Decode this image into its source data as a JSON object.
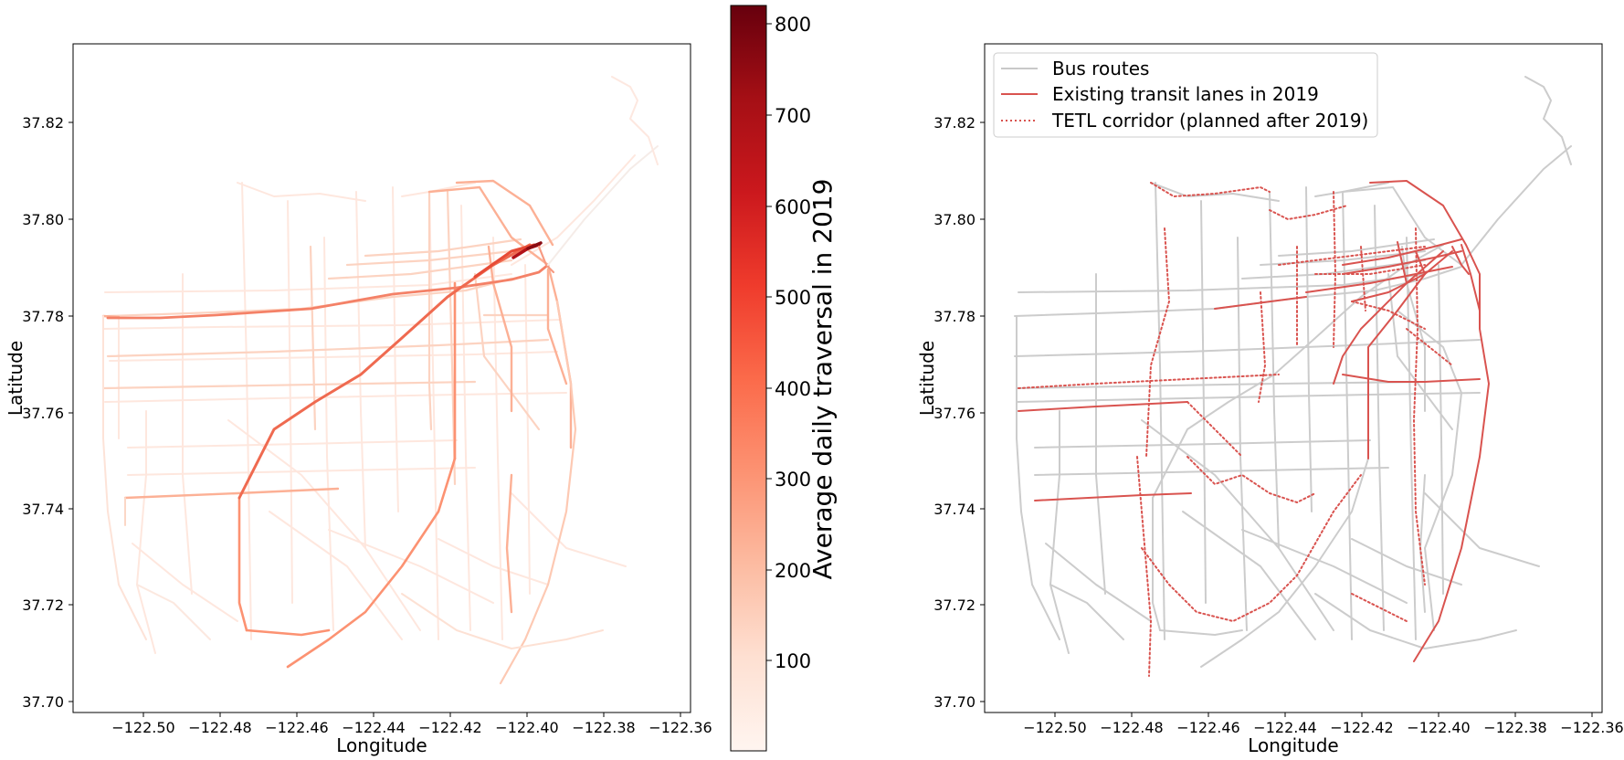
{
  "chart_data": [
    {
      "type": "map",
      "xlabel": "Longitude",
      "ylabel": "Latitude",
      "x_ticks": [
        "−122.50",
        "−122.48",
        "−122.46",
        "−122.44",
        "−122.42",
        "−122.40",
        "−122.38",
        "−122.36"
      ],
      "y_ticks": [
        "37.82",
        "37.80",
        "37.78",
        "37.76",
        "37.74",
        "37.72",
        "37.70"
      ],
      "colorbar": {
        "label": "Average daily traversal in 2019",
        "ticks": [
          "100",
          "200",
          "300",
          "400",
          "500",
          "600",
          "700",
          "800"
        ],
        "range": [
          0,
          820
        ],
        "colormap": "Reds"
      },
      "xlim": [
        -122.52,
        -122.357
      ],
      "ylim": [
        37.698,
        37.836
      ]
    },
    {
      "type": "map",
      "xlabel": "Longitude",
      "ylabel": "Latitude",
      "x_ticks": [
        "−122.50",
        "−122.48",
        "−122.46",
        "−122.44",
        "−122.42",
        "−122.40",
        "−122.38",
        "−122.36"
      ],
      "y_ticks": [
        "37.82",
        "37.80",
        "37.78",
        "37.76",
        "37.74",
        "37.72",
        "37.70"
      ],
      "legend": [
        {
          "label": "Bus routes",
          "style": "solid",
          "color": "#c8c8c8"
        },
        {
          "label": "Existing transit lanes in 2019",
          "style": "solid",
          "color": "#d9534f"
        },
        {
          "label": "TETL corridor (planned after 2019)",
          "style": "dotted",
          "color": "#d9534f"
        }
      ],
      "legend_position": "top-left",
      "xlim": [
        -122.52,
        -122.357
      ],
      "ylim": [
        37.698,
        37.836
      ]
    }
  ]
}
